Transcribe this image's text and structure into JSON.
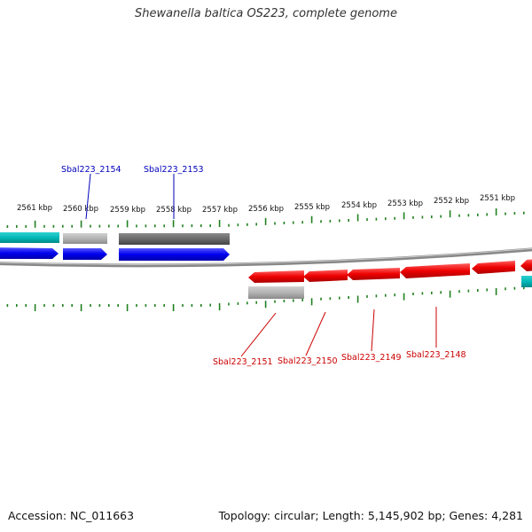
{
  "title": "Shewanella baltica OS223, complete genome",
  "accession": "Accession: NC_011663",
  "summary": "Topology: circular; Length: 5,145,902 bp; Genes: 4,281",
  "kbp_labels": [
    "2561 kbp",
    "2560 kbp",
    "2559 kbp",
    "2558 kbp",
    "2557 kbp",
    "2556 kbp",
    "2555 kbp",
    "2554 kbp",
    "2553 kbp",
    "2552 kbp",
    "2551 kbp"
  ],
  "genes_forward": [
    "Sbal223_2154",
    "Sbal223_2153"
  ],
  "genes_reverse": [
    "Sbal223_2151",
    "Sbal223_2150",
    "Sbal223_2149",
    "Sbal223_2148"
  ],
  "colors": {
    "forward_label": "#0000bb",
    "reverse_label": "#cc0000",
    "forward_cds": "#0000ee",
    "reverse_cds": "#ee0000",
    "teal": "#00b5b5",
    "gray_light": "#b8b8b8",
    "gray_dark": "#6a6a6a",
    "tick": "#208020",
    "backbone": "#888888"
  }
}
